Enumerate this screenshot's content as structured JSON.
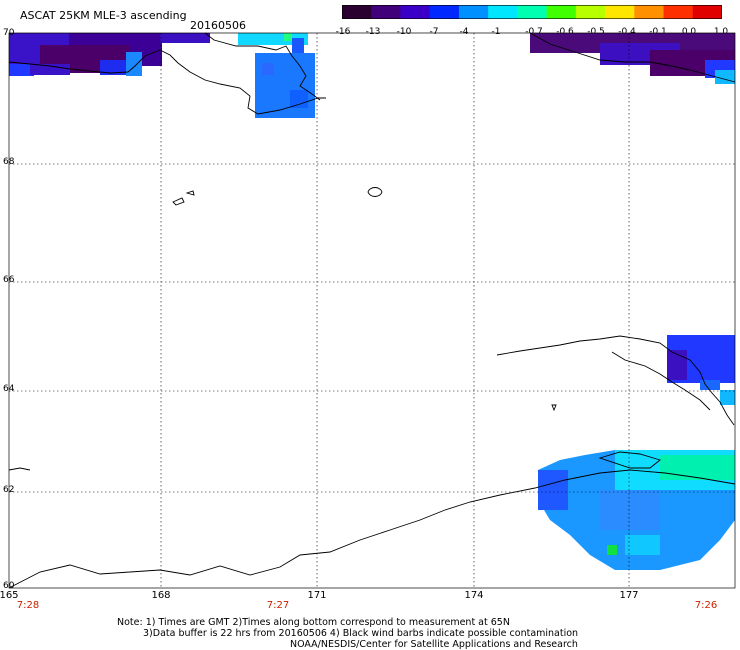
{
  "header": {
    "title": "ASCAT 25KM MLE-3 ascending",
    "date": "20160506"
  },
  "colorbar": {
    "colors": [
      "#2a0030",
      "#40007a",
      "#3a00c8",
      "#0028ff",
      "#0090ff",
      "#00e6ff",
      "#00ffb0",
      "#40ff00",
      "#b8ff00",
      "#ffe600",
      "#ff9000",
      "#ff3000",
      "#e00000"
    ],
    "tick_labels": [
      "-16",
      "-13",
      "-10",
      "-7",
      "-4",
      "-1",
      "-0.7",
      "-0.6",
      "-0.5",
      "-0.4",
      "-0.1",
      "0.0",
      "1.0"
    ]
  },
  "map": {
    "lat_labels": [
      "70",
      "68",
      "66",
      "64",
      "62",
      "60"
    ],
    "lon_labels": [
      "165",
      "168",
      "171",
      "174",
      "177"
    ],
    "time_labels": [
      "7:28",
      "7:27",
      "7:26"
    ]
  },
  "notes": {
    "line1": "Note: 1) Times are GMT 2)Times along bottom correspond to measurement at 65N",
    "line2": "3)Data buffer is 22 hrs from 20160506 4) Black wind barbs indicate possible contamination",
    "line3": "NOAA/NESDIS/Center for Satellite Applications and Research"
  }
}
